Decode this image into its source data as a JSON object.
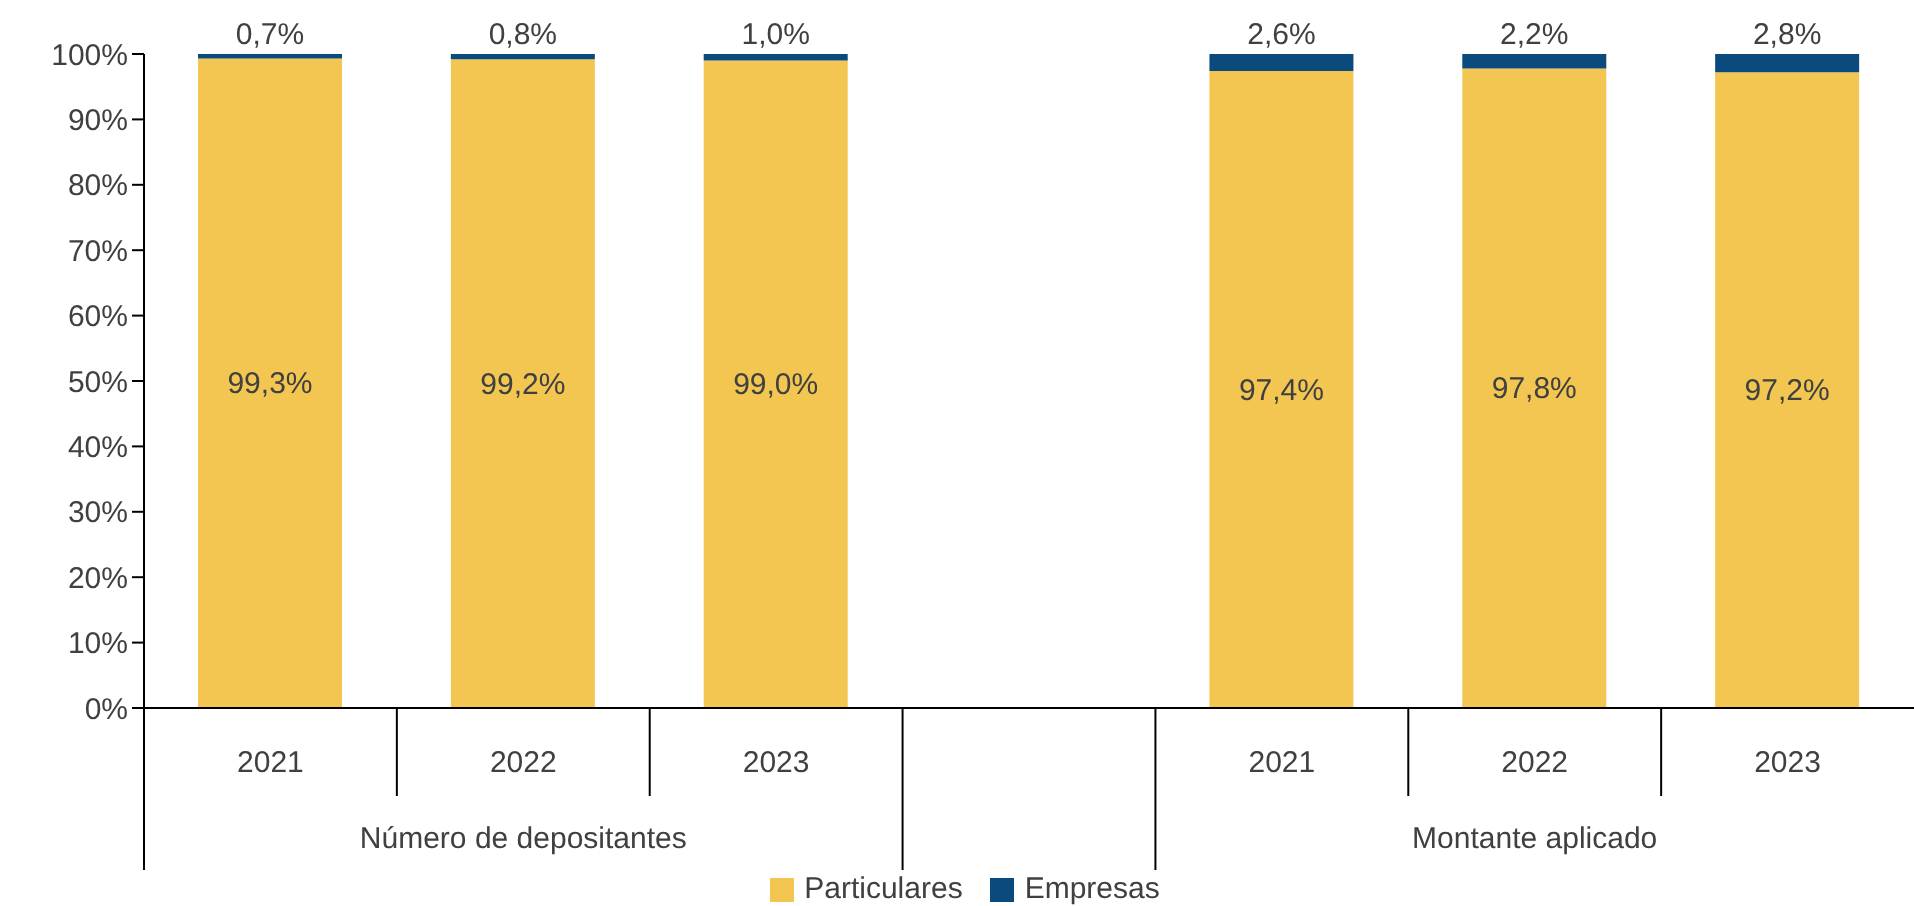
{
  "chart_data": {
    "type": "bar",
    "stacked": true,
    "categories": [
      "2021",
      "2022",
      "2023",
      null,
      "2021",
      "2022",
      "2023"
    ],
    "series": [
      {
        "name": "Particulares",
        "color": "#f2c650",
        "values": [
          99.3,
          99.2,
          99.0,
          null,
          97.4,
          97.8,
          97.2
        ],
        "value_labels": [
          "99,3%",
          "99,2%",
          "99,0%",
          null,
          "97,4%",
          "97,8%",
          "97,2%"
        ]
      },
      {
        "name": "Empresas",
        "color": "#0b4a7c",
        "values": [
          0.7,
          0.8,
          1.0,
          null,
          2.6,
          2.2,
          2.8
        ],
        "value_labels": [
          "0,7%",
          "0,8%",
          "1,0%",
          null,
          "2,6%",
          "2,2%",
          "2,8%"
        ]
      }
    ],
    "annotations": [
      "Número de depositantes",
      "Montante aplicado"
    ],
    "ylim": [
      0,
      100
    ],
    "yticks": [
      {
        "value": 0,
        "label": "0%"
      },
      {
        "value": 10,
        "label": "10%"
      },
      {
        "value": 20,
        "label": "20%"
      },
      {
        "value": 30,
        "label": "30%"
      },
      {
        "value": 40,
        "label": "40%"
      },
      {
        "value": 50,
        "label": "50%"
      },
      {
        "value": 60,
        "label": "60%"
      },
      {
        "value": 70,
        "label": "70%"
      },
      {
        "value": 80,
        "label": "80%"
      },
      {
        "value": 90,
        "label": "90%"
      },
      {
        "value": 100,
        "label": "100%"
      }
    ],
    "grid": false,
    "legend": "bottom"
  }
}
